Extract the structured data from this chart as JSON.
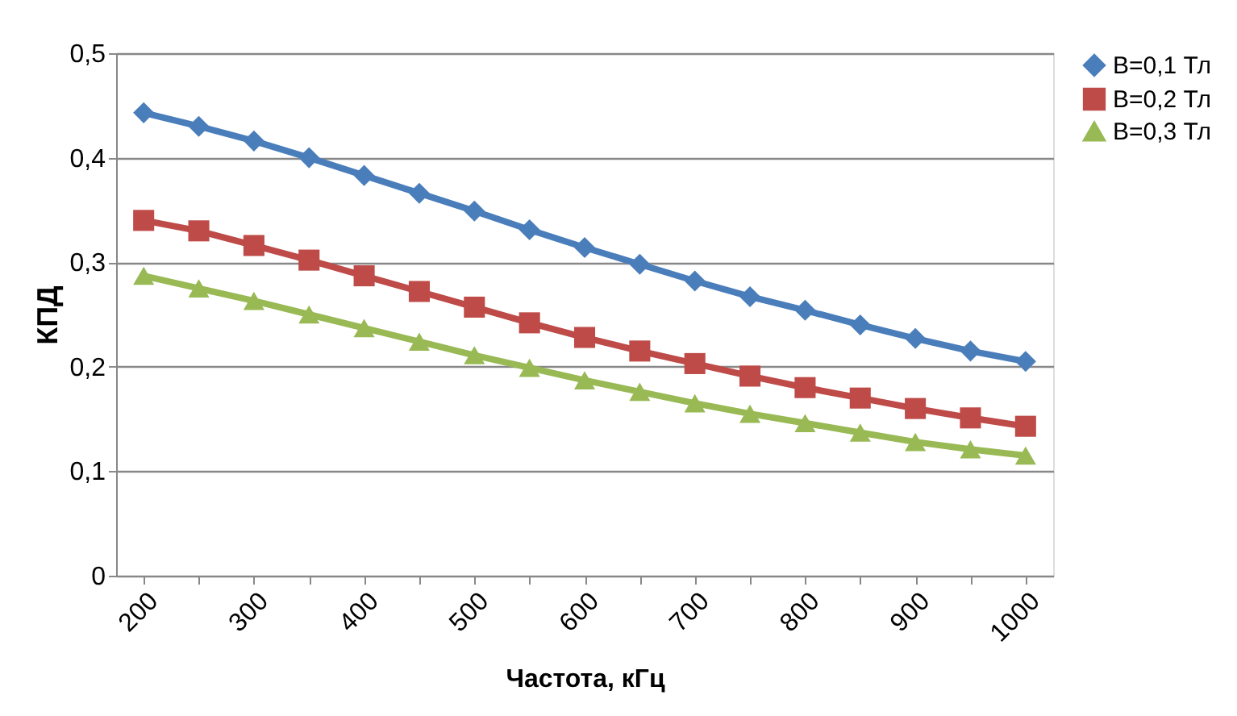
{
  "chart_data": {
    "type": "line",
    "xlabel": "Частота, кГц",
    "ylabel": "КПД",
    "categories": [
      "200",
      null,
      "300",
      null,
      "400",
      null,
      "500",
      null,
      "600",
      null,
      "700",
      null,
      "800",
      null,
      "900",
      null,
      "1000"
    ],
    "ylim": [
      0,
      0.5
    ],
    "yticks": [
      0,
      {
        "value": 0.1,
        "label": "0,1"
      },
      {
        "value": 0.2,
        "label": "0,2"
      },
      {
        "value": 0.3,
        "label": "0,3"
      },
      {
        "value": 0.4,
        "label": "0,4"
      },
      {
        "value": 0.5,
        "label": "0,5"
      }
    ],
    "grid": "y",
    "legend": "right",
    "line_style": "solid",
    "series": [
      {
        "name": "B=0,1 Тл",
        "color": "#4a7ebb",
        "marker": "diamond",
        "values": [
          0.443,
          0.43,
          0.416,
          0.4,
          0.383,
          0.366,
          0.349,
          0.331,
          0.314,
          0.298,
          0.282,
          0.267,
          0.254,
          0.24,
          0.227,
          0.215,
          0.205
        ]
      },
      {
        "name": "B=0,2 Тл",
        "color": "#be4b48",
        "marker": "square",
        "values": [
          0.34,
          0.33,
          0.316,
          0.302,
          0.287,
          0.272,
          0.257,
          0.242,
          0.228,
          0.215,
          0.203,
          0.191,
          0.18,
          0.17,
          0.16,
          0.151,
          0.143
        ]
      },
      {
        "name": "B=0,3 Тл",
        "color": "#98b954",
        "marker": "triangle",
        "values": [
          0.287,
          0.275,
          0.263,
          0.25,
          0.237,
          0.224,
          0.211,
          0.199,
          0.187,
          0.176,
          0.165,
          0.155,
          0.146,
          0.137,
          0.128,
          0.121,
          0.115
        ]
      }
    ]
  }
}
